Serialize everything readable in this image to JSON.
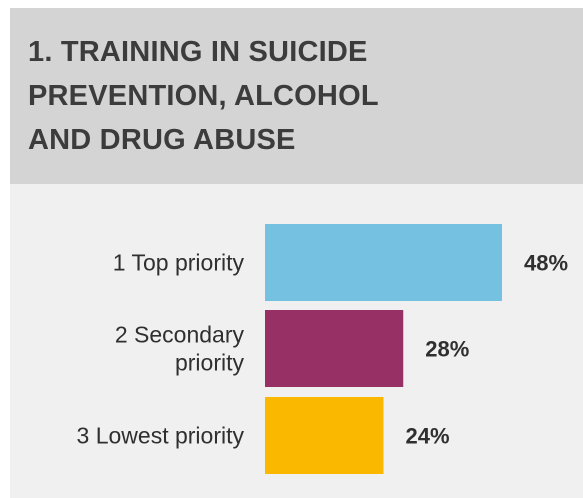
{
  "chart_data": {
    "type": "bar",
    "orientation": "horizontal",
    "title": "1. TRAINING IN SUICIDE\nPREVENTION, ALCOHOL\nAND DRUG ABUSE",
    "categories": [
      [
        "1 Top priority"
      ],
      [
        "2 Secondary",
        "priority"
      ],
      [
        "3 Lowest priority"
      ]
    ],
    "values": [
      48,
      28,
      24
    ],
    "value_labels": [
      "48%",
      "28%",
      "24%"
    ],
    "unit": "%",
    "colors": [
      "#74c1e2",
      "#963065",
      "#fbb800"
    ],
    "xlim": [
      0,
      48
    ],
    "grid": false,
    "legend": "none"
  }
}
